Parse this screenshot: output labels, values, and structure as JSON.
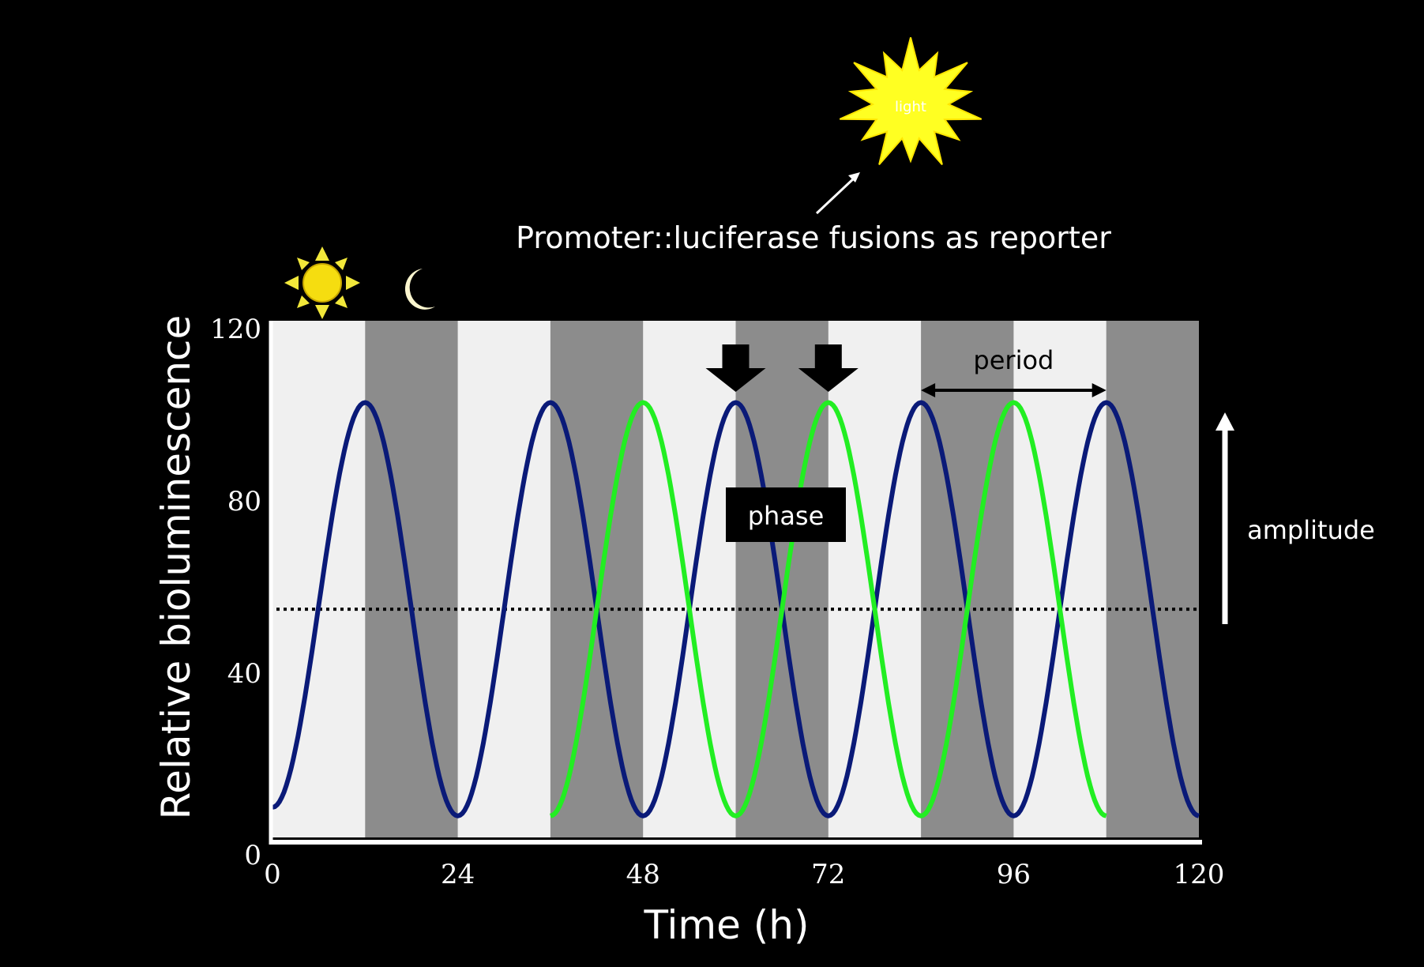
{
  "chart_data": {
    "type": "line",
    "title": "",
    "xlabel": "Time (h)",
    "ylabel": "Relative bioluminescence",
    "xlim": [
      0,
      120
    ],
    "ylim": [
      0,
      120
    ],
    "x_ticks": [
      "0",
      "24",
      "48",
      "72",
      "96",
      "120"
    ],
    "y_ticks": [
      "0",
      "40",
      "80",
      "120"
    ],
    "grid": false,
    "legend": "none",
    "shading": {
      "light_color": "#f0f0f0",
      "dark_color": "#8c8c8c",
      "dark_intervals": [
        [
          12,
          24
        ],
        [
          36,
          48
        ],
        [
          60,
          72
        ],
        [
          84,
          96
        ],
        [
          108,
          120
        ]
      ]
    },
    "threshold_line": {
      "y": 53,
      "style": "dotted",
      "color": "#000000"
    },
    "series": [
      {
        "color": "#0a1a78",
        "x": [
          0,
          12,
          24,
          36,
          48,
          60,
          72,
          84,
          96,
          108,
          120
        ],
        "y": [
          7,
          101,
          5,
          101,
          5,
          101,
          5,
          101,
          5,
          101,
          5
        ]
      },
      {
        "color": "#22ee22",
        "x": [
          36,
          48,
          60,
          72,
          84,
          96,
          108
        ],
        "y": [
          5,
          101,
          5,
          101,
          5,
          101,
          5
        ]
      }
    ],
    "annotations": {
      "top_caption": "Promoter::luciferase fusions as reporter",
      "light_burst_label": "light",
      "phase_label": "phase",
      "period_label": "period",
      "amplitude_label": "amplitude",
      "period_span_hours": [
        84,
        108
      ],
      "phase_arrow_hours": [
        60,
        72
      ]
    },
    "icons": [
      "sun-icon",
      "moon-icon",
      "light-burst-icon"
    ]
  }
}
